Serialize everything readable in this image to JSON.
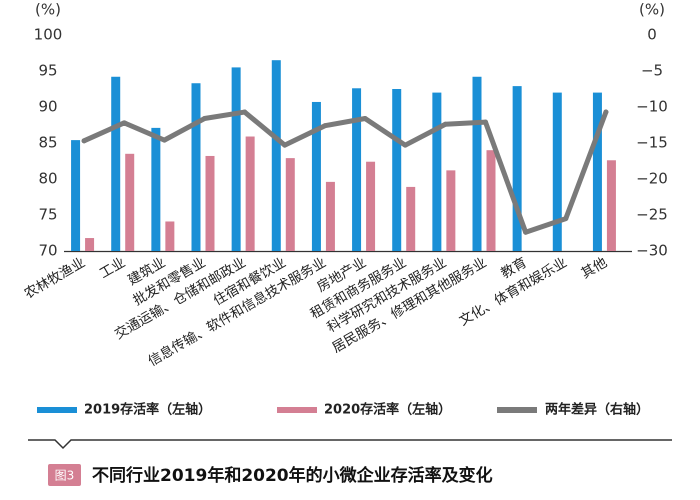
{
  "chart_data": {
    "type": "bar",
    "title": "不同行业2019年和2020年的小微企业存活率及变化",
    "figure_label": "图3",
    "left_axis": {
      "unit": "(%)",
      "ylim": [
        70,
        100
      ],
      "ticks": [
        "70",
        "75",
        "80",
        "85",
        "90",
        "95",
        "100"
      ]
    },
    "right_axis": {
      "unit": "(%)",
      "ylim": [
        -30,
        0
      ],
      "ticks": [
        "−30",
        "−25",
        "−20",
        "−15",
        "−10",
        "−5",
        "0"
      ]
    },
    "categories": [
      "农林牧渔业",
      "工业",
      "建筑业",
      "批发和零售业",
      "交通运输、仓储和邮政业",
      "住宿和餐饮业",
      "信息传输、软件和信息技术服务业",
      "房地产业",
      "租赁和商务服务业",
      "科学研究和技术服务业",
      "居民服务、修理和其他服务业",
      "教育",
      "文化、体育和娱乐业",
      "其他"
    ],
    "series": [
      {
        "name": "2019存活率（左轴）",
        "axis": "left",
        "kind": "bar",
        "color": "#1a8fd6",
        "values": [
          85.4,
          94.2,
          87.1,
          93.3,
          95.5,
          96.5,
          90.7,
          92.6,
          92.5,
          92.0,
          94.2,
          92.9,
          92.0,
          92.0
        ]
      },
      {
        "name": "2020存活率（左轴）",
        "axis": "left",
        "kind": "bar",
        "color": "#d47f93",
        "values": [
          71.8,
          83.5,
          74.1,
          83.2,
          85.9,
          82.9,
          79.6,
          82.4,
          78.9,
          81.2,
          84.0,
          null,
          null,
          82.6
        ]
      },
      {
        "name": "两年差异（右轴）",
        "axis": "right",
        "kind": "line",
        "color": "#7a7a7a",
        "values": [
          -14.7,
          -12.2,
          -14.6,
          -11.6,
          -10.7,
          -15.3,
          -12.6,
          -11.6,
          -15.3,
          -12.4,
          -12.1,
          -27.4,
          -25.5,
          -10.7
        ]
      }
    ],
    "legend": [
      "2019存活率（左轴）",
      "2020存活率（左轴）",
      "两年差异（右轴）"
    ],
    "grid": false,
    "legend_position": "bottom"
  }
}
